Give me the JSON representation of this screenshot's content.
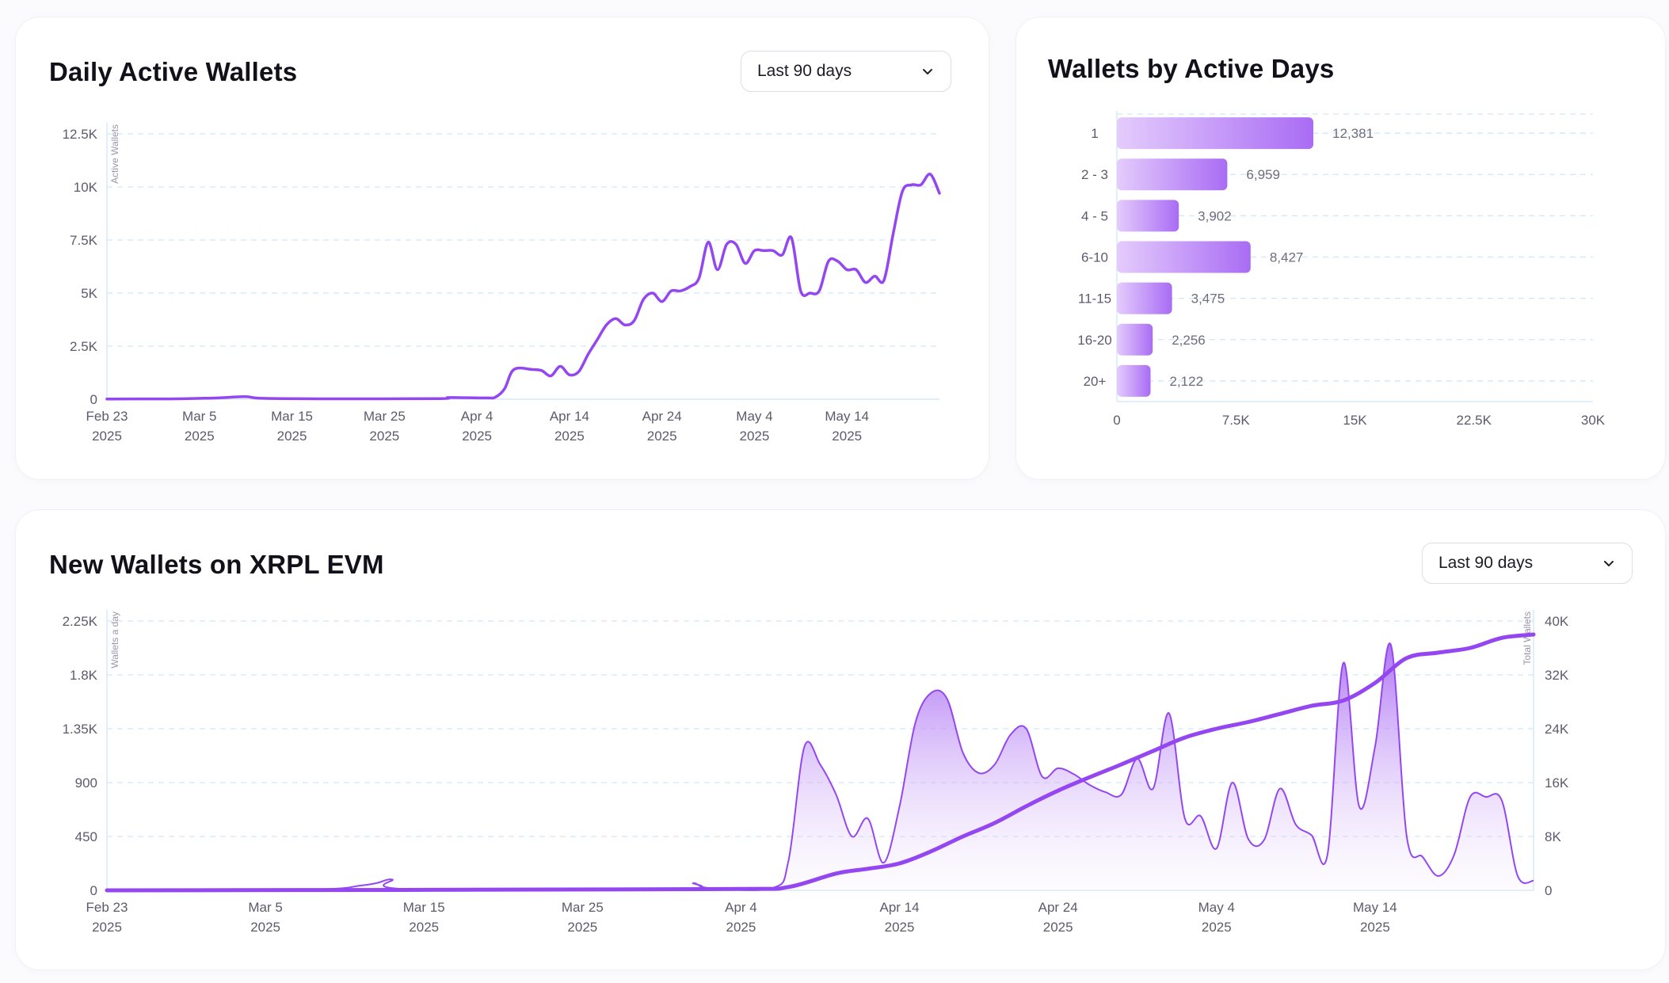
{
  "daily_active": {
    "title": "Daily Active Wallets",
    "range_label": "Last 90 days",
    "chart_data": {
      "type": "line",
      "title": "Daily Active Wallets",
      "ylabel": "Active Wallets",
      "ylim": [
        0,
        12500
      ],
      "y_ticks": [
        0,
        2500,
        5000,
        7500,
        10000,
        12500
      ],
      "y_tick_labels": [
        "0",
        "2.5K",
        "5K",
        "7.5K",
        "10K",
        "12.5K"
      ],
      "x_start": "2025-02-23",
      "x_end": "2025-05-24",
      "x_ticks": [
        {
          "date": "2025-02-23",
          "line1": "Feb 23",
          "line2": "2025"
        },
        {
          "date": "2025-03-05",
          "line1": "Mar 5",
          "line2": "2025"
        },
        {
          "date": "2025-03-15",
          "line1": "Mar 15",
          "line2": "2025"
        },
        {
          "date": "2025-03-25",
          "line1": "Mar 25",
          "line2": "2025"
        },
        {
          "date": "2025-04-04",
          "line1": "Apr 4",
          "line2": "2025"
        },
        {
          "date": "2025-04-14",
          "line1": "Apr 14",
          "line2": "2025"
        },
        {
          "date": "2025-04-24",
          "line1": "Apr 24",
          "line2": "2025"
        },
        {
          "date": "2025-05-04",
          "line1": "May 4",
          "line2": "2025"
        },
        {
          "date": "2025-05-14",
          "line1": "May 14",
          "line2": "2025"
        }
      ],
      "grid": true,
      "color": "#9447f0",
      "series": [
        {
          "points": [
            [
              "2025-02-23",
              10
            ],
            [
              "2025-03-01",
              15
            ],
            [
              "2025-03-05",
              40
            ],
            [
              "2025-03-07",
              60
            ],
            [
              "2025-03-10",
              120
            ],
            [
              "2025-03-12",
              40
            ],
            [
              "2025-03-20",
              20
            ],
            [
              "2025-03-31",
              30
            ],
            [
              "2025-04-01",
              80
            ],
            [
              "2025-04-05",
              60
            ],
            [
              "2025-04-06",
              100
            ],
            [
              "2025-04-07",
              500
            ],
            [
              "2025-04-08",
              1400
            ],
            [
              "2025-04-10",
              1400
            ],
            [
              "2025-04-11",
              1350
            ],
            [
              "2025-04-12",
              1100
            ],
            [
              "2025-04-13",
              1550
            ],
            [
              "2025-04-14",
              1150
            ],
            [
              "2025-04-15",
              1300
            ],
            [
              "2025-04-16",
              2100
            ],
            [
              "2025-04-17",
              2800
            ],
            [
              "2025-04-18",
              3500
            ],
            [
              "2025-04-19",
              3800
            ],
            [
              "2025-04-20",
              3500
            ],
            [
              "2025-04-21",
              3700
            ],
            [
              "2025-04-22",
              4700
            ],
            [
              "2025-04-23",
              5000
            ],
            [
              "2025-04-24",
              4600
            ],
            [
              "2025-04-25",
              5100
            ],
            [
              "2025-04-26",
              5100
            ],
            [
              "2025-04-27",
              5300
            ],
            [
              "2025-04-28",
              5700
            ],
            [
              "2025-04-29",
              7400
            ],
            [
              "2025-04-30",
              6100
            ],
            [
              "2025-05-01",
              7300
            ],
            [
              "2025-05-02",
              7300
            ],
            [
              "2025-05-03",
              6400
            ],
            [
              "2025-05-04",
              7000
            ],
            [
              "2025-05-05",
              7000
            ],
            [
              "2025-05-06",
              7000
            ],
            [
              "2025-05-07",
              6800
            ],
            [
              "2025-05-08",
              7600
            ],
            [
              "2025-05-09",
              5100
            ],
            [
              "2025-05-10",
              5000
            ],
            [
              "2025-05-11",
              5100
            ],
            [
              "2025-05-12",
              6500
            ],
            [
              "2025-05-13",
              6500
            ],
            [
              "2025-05-14",
              6100
            ],
            [
              "2025-05-15",
              6100
            ],
            [
              "2025-05-16",
              5500
            ],
            [
              "2025-05-17",
              5800
            ],
            [
              "2025-05-18",
              5600
            ],
            [
              "2025-05-19",
              7800
            ],
            [
              "2025-05-20",
              9800
            ],
            [
              "2025-05-21",
              10100
            ],
            [
              "2025-05-22",
              10100
            ],
            [
              "2025-05-23",
              10600
            ],
            [
              "2025-05-24",
              9700
            ]
          ]
        }
      ]
    }
  },
  "wallets_by_days": {
    "title": "Wallets by Active Days",
    "chart_data": {
      "type": "bar",
      "orientation": "horizontal",
      "title": "Wallets by Active Days",
      "categories": [
        "1",
        "2 - 3",
        "4 - 5",
        "6-10",
        "11-15",
        "16-20",
        "20+"
      ],
      "values": [
        12381,
        6959,
        3902,
        8427,
        3475,
        2256,
        2122
      ],
      "value_labels": [
        "12,381",
        "6,959",
        "3,902",
        "8,427",
        "3,475",
        "2,256",
        "2,122"
      ],
      "xlim": [
        0,
        30000
      ],
      "x_ticks": [
        0,
        7500,
        15000,
        22500,
        30000
      ],
      "x_tick_labels": [
        "0",
        "7.5K",
        "15K",
        "22.5K",
        "30K"
      ],
      "grid": true,
      "color_start": "#e4ccfc",
      "color_end": "#a96cf4"
    }
  },
  "new_wallets": {
    "title": "New Wallets on XRPL EVM",
    "range_label": "Last 90 days",
    "chart_data": {
      "type": "area",
      "title": "New Wallets on XRPL EVM",
      "ylabel": "Wallets a day",
      "y2label": "Total Wallets",
      "ylim": [
        0,
        2250
      ],
      "y_ticks": [
        0,
        450,
        900,
        1350,
        1800,
        2250
      ],
      "y_tick_labels": [
        "0",
        "450",
        "900",
        "1.35K",
        "1.8K",
        "2.25K"
      ],
      "y2lim": [
        0,
        40000
      ],
      "y2_ticks": [
        0,
        8000,
        16000,
        24000,
        32000,
        40000
      ],
      "y2_tick_labels": [
        "0",
        "8K",
        "16K",
        "24K",
        "32K",
        "40K"
      ],
      "x_start": "2025-02-23",
      "x_end": "2025-05-24",
      "x_ticks": [
        {
          "date": "2025-02-23",
          "line1": "Feb 23",
          "line2": "2025"
        },
        {
          "date": "2025-03-05",
          "line1": "Mar 5",
          "line2": "2025"
        },
        {
          "date": "2025-03-15",
          "line1": "Mar 15",
          "line2": "2025"
        },
        {
          "date": "2025-03-25",
          "line1": "Mar 25",
          "line2": "2025"
        },
        {
          "date": "2025-04-04",
          "line1": "Apr 4",
          "line2": "2025"
        },
        {
          "date": "2025-04-14",
          "line1": "Apr 14",
          "line2": "2025"
        },
        {
          "date": "2025-04-24",
          "line1": "Apr 24",
          "line2": "2025"
        },
        {
          "date": "2025-05-04",
          "line1": "May 4",
          "line2": "2025"
        },
        {
          "date": "2025-05-14",
          "line1": "May 14",
          "line2": "2025"
        }
      ],
      "grid": true,
      "color": "#9447f0",
      "series": [
        {
          "axis": "left",
          "points": [
            [
              "2025-02-23",
              5
            ],
            [
              "2025-03-08",
              8
            ],
            [
              "2025-03-11",
              40
            ],
            [
              "2025-03-12",
              60
            ],
            [
              "2025-03-13",
              90
            ],
            [
              "2025-03-14",
              10
            ],
            [
              "2025-03-31",
              10
            ],
            [
              "2025-04-01",
              60
            ],
            [
              "2025-04-02",
              20
            ],
            [
              "2025-04-06",
              20
            ],
            [
              "2025-04-07",
              250
            ],
            [
              "2025-04-08",
              1200
            ],
            [
              "2025-04-09",
              1050
            ],
            [
              "2025-04-10",
              800
            ],
            [
              "2025-04-11",
              450
            ],
            [
              "2025-04-12",
              600
            ],
            [
              "2025-04-13",
              230
            ],
            [
              "2025-04-14",
              700
            ],
            [
              "2025-04-15",
              1400
            ],
            [
              "2025-04-16",
              1650
            ],
            [
              "2025-04-17",
              1600
            ],
            [
              "2025-04-18",
              1150
            ],
            [
              "2025-04-19",
              980
            ],
            [
              "2025-04-20",
              1050
            ],
            [
              "2025-04-21",
              1300
            ],
            [
              "2025-04-22",
              1350
            ],
            [
              "2025-04-23",
              950
            ],
            [
              "2025-04-24",
              1020
            ],
            [
              "2025-04-25",
              970
            ],
            [
              "2025-04-26",
              880
            ],
            [
              "2025-04-27",
              820
            ],
            [
              "2025-04-28",
              800
            ],
            [
              "2025-04-29",
              1100
            ],
            [
              "2025-04-30",
              850
            ],
            [
              "2025-05-01",
              1480
            ],
            [
              "2025-05-02",
              600
            ],
            [
              "2025-05-03",
              620
            ],
            [
              "2025-05-04",
              350
            ],
            [
              "2025-05-05",
              900
            ],
            [
              "2025-05-06",
              430
            ],
            [
              "2025-05-07",
              420
            ],
            [
              "2025-05-08",
              850
            ],
            [
              "2025-05-09",
              550
            ],
            [
              "2025-05-10",
              460
            ],
            [
              "2025-05-11",
              300
            ],
            [
              "2025-05-12",
              1900
            ],
            [
              "2025-05-13",
              700
            ],
            [
              "2025-05-14",
              1200
            ],
            [
              "2025-05-15",
              2050
            ],
            [
              "2025-05-16",
              450
            ],
            [
              "2025-05-17",
              280
            ],
            [
              "2025-05-18",
              120
            ],
            [
              "2025-05-19",
              300
            ],
            [
              "2025-05-20",
              780
            ],
            [
              "2025-05-21",
              780
            ],
            [
              "2025-05-22",
              750
            ],
            [
              "2025-05-23",
              120
            ],
            [
              "2025-05-24",
              80
            ]
          ]
        },
        {
          "axis": "right",
          "points": [
            [
              "2025-02-23",
              0
            ],
            [
              "2025-03-10",
              50
            ],
            [
              "2025-03-20",
              100
            ],
            [
              "2025-04-04",
              200
            ],
            [
              "2025-04-07",
              500
            ],
            [
              "2025-04-10",
              2500
            ],
            [
              "2025-04-12",
              3200
            ],
            [
              "2025-04-14",
              4000
            ],
            [
              "2025-04-16",
              5800
            ],
            [
              "2025-04-18",
              8000
            ],
            [
              "2025-04-20",
              10000
            ],
            [
              "2025-04-22",
              12500
            ],
            [
              "2025-04-24",
              14800
            ],
            [
              "2025-04-26",
              16800
            ],
            [
              "2025-04-28",
              18700
            ],
            [
              "2025-04-30",
              20700
            ],
            [
              "2025-05-02",
              22700
            ],
            [
              "2025-05-04",
              24000
            ],
            [
              "2025-05-06",
              25000
            ],
            [
              "2025-05-08",
              26200
            ],
            [
              "2025-05-10",
              27400
            ],
            [
              "2025-05-12",
              28200
            ],
            [
              "2025-05-14",
              30800
            ],
            [
              "2025-05-16",
              34500
            ],
            [
              "2025-05-18",
              35300
            ],
            [
              "2025-05-20",
              36000
            ],
            [
              "2025-05-22",
              37500
            ],
            [
              "2025-05-24",
              38000
            ]
          ]
        }
      ]
    }
  }
}
